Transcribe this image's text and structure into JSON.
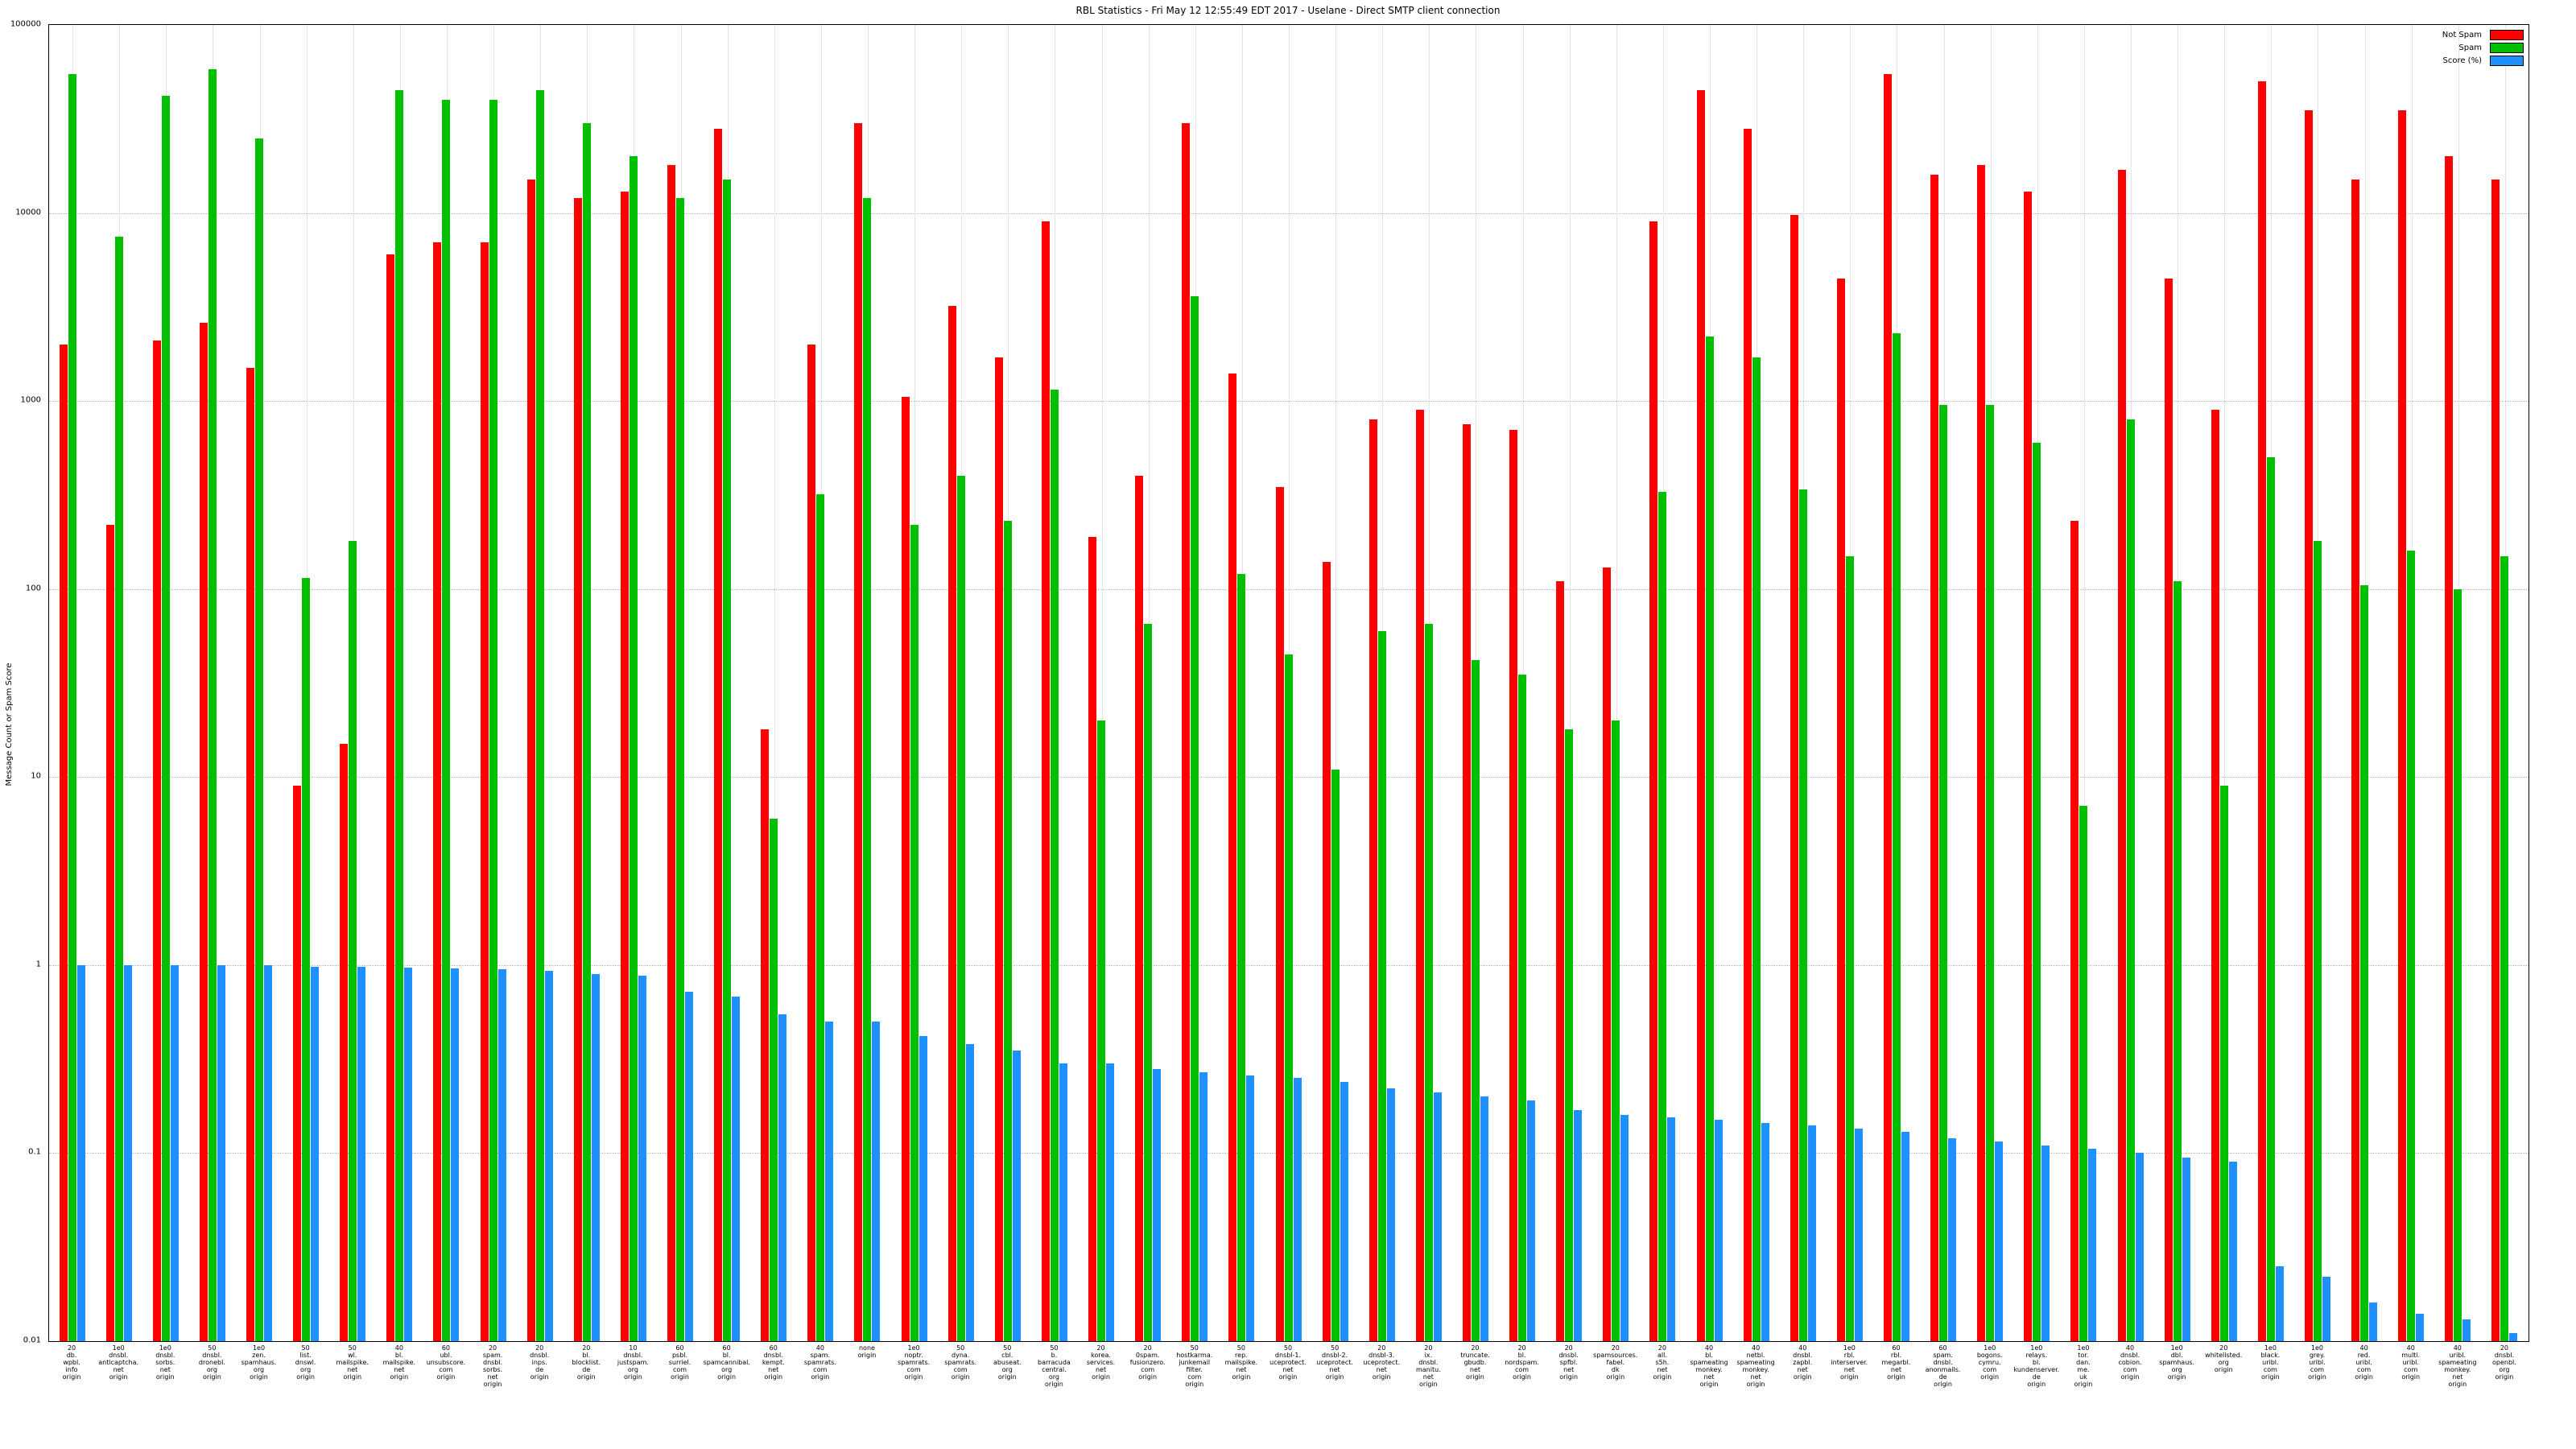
{
  "title": "RBL Statistics - Fri May 12 12:55:49 EDT 2017 - Uselane - Direct SMTP client connection",
  "ylabel": "Message Count or Spam Score",
  "legend": [
    {
      "label": "Not Spam",
      "color": "#ff0000"
    },
    {
      "label": "Spam",
      "color": "#00c000"
    },
    {
      "label": "Score (%)",
      "color": "#1e90ff"
    }
  ],
  "chart_data": {
    "type": "bar",
    "scale": "log",
    "ylim": [
      0.01,
      100000
    ],
    "yticks": [
      "100000",
      "10000",
      "1000",
      "100",
      "10",
      "1",
      "0.1",
      "0.01"
    ],
    "grid": true,
    "legend_position": "top-right",
    "categories": [
      "20 db. wpbl. info origin",
      "1e0 dnsbl. anticaptcha. net origin",
      "1e0 dnsbl. sorbs. net origin",
      "50 dnsbl. dronebl. org origin",
      "1e0 zen. spamhaus. org origin",
      "50 list. dnswl. org origin",
      "50 wl. mailspike. net origin",
      "40 bl. mailspike. net origin",
      "60 ubl. unsubscore. com origin",
      "20 spam. dnsbl. sorbs. net origin",
      "20 dnsbl. inps. de origin",
      "20 bl. blocklist. de origin",
      "10 dnsbl. justspam. org origin",
      "60 psbl. surriel. com origin",
      "60 bl. spamcannibal. org origin",
      "60 dnsbl. kempt. net origin",
      "40 spam. spamrats. com origin",
      "none origin",
      "1e0 noptr. spamrats. com origin",
      "50 dyna. spamrats. com origin",
      "50 cbl. abuseat. org origin",
      "50 b. barracuda central. org origin",
      "20 korea. services. net origin",
      "20 0spam. fusionzero. com origin",
      "50 hostkarma. junkemail filter. com origin",
      "50 rep. mailspike. net origin",
      "50 dnsbl-1. uceprotect. net origin",
      "50 dnsbl-2. uceprotect. net origin",
      "20 dnsbl-3. uceprotect. net origin",
      "20 ix. dnsbl. manitu. net origin",
      "20 truncate. gbudb. net origin",
      "20 bl. nordspam. com origin",
      "20 dnsbl. spfbl. net origin",
      "20 spamsources. fabel. dk origin",
      "20 all. s5h. net origin",
      "40 bl. spameating monkey. net origin",
      "40 netbl. spameating monkey. net origin",
      "40 dnsbl. zapbl. net origin",
      "1e0 rbl. interserver. net origin",
      "60 rbl. megarbl. net origin",
      "60 spam. dnsbl. anonmails. de origin",
      "1e0 bogons. cymru. com origin",
      "1e0 relays. bl. kundenserver. de origin",
      "1e0 tor. dan. me. uk origin",
      "40 dnsbl. cobion. com origin",
      "1e0 dbl. spamhaus. org origin",
      "20 whitelisted. org origin",
      "1e0 black. uribl. com origin",
      "1e0 grey. uribl. com origin",
      "40 red. uribl. com origin",
      "40 multi. uribl. com origin",
      "40 uribl. spameating monkey. net origin",
      "20 dnsbl. openbl. org origin"
    ],
    "series": [
      {
        "name": "Not Spam",
        "color": "#ff0000",
        "values": [
          2000,
          220,
          2100,
          2600,
          1500,
          9,
          15,
          6000,
          7000,
          7000,
          15000,
          12000,
          13000,
          18000,
          28000,
          18,
          2000,
          30000,
          1050,
          3200,
          1700,
          9000,
          190,
          400,
          30000,
          1400,
          350,
          140,
          800,
          900,
          750,
          700,
          110,
          130,
          9000,
          45000,
          28000,
          9800,
          4500,
          55000,
          16000,
          18000,
          13000,
          230,
          17000,
          4500,
          900,
          50000,
          35000,
          15000,
          35000,
          20000,
          15000
        ]
      },
      {
        "name": "Spam",
        "color": "#00c000",
        "values": [
          55000,
          7500,
          42000,
          58000,
          25000,
          115,
          180,
          45000,
          40000,
          40000,
          45000,
          30000,
          20000,
          12000,
          15000,
          6,
          320,
          12000,
          220,
          400,
          230,
          1150,
          20,
          65,
          3600,
          120,
          45,
          11,
          60,
          65,
          42,
          35,
          18,
          20,
          330,
          2200,
          1700,
          340,
          150,
          2300,
          950,
          950,
          600,
          7,
          800,
          110,
          9,
          500,
          180,
          105,
          160,
          100,
          150
        ]
      },
      {
        "name": "Score (%)",
        "color": "#1e90ff",
        "values": [
          1.0,
          1.0,
          1.0,
          1.0,
          1.0,
          0.98,
          0.98,
          0.97,
          0.96,
          0.95,
          0.93,
          0.9,
          0.88,
          0.72,
          0.68,
          0.55,
          0.5,
          0.5,
          0.42,
          0.38,
          0.35,
          0.3,
          0.3,
          0.28,
          0.27,
          0.26,
          0.25,
          0.24,
          0.22,
          0.21,
          0.2,
          0.19,
          0.17,
          0.16,
          0.155,
          0.15,
          0.145,
          0.14,
          0.135,
          0.13,
          0.12,
          0.115,
          0.11,
          0.105,
          0.1,
          0.095,
          0.09,
          0.025,
          0.022,
          0.016,
          0.014,
          0.013,
          0.011
        ]
      }
    ]
  }
}
